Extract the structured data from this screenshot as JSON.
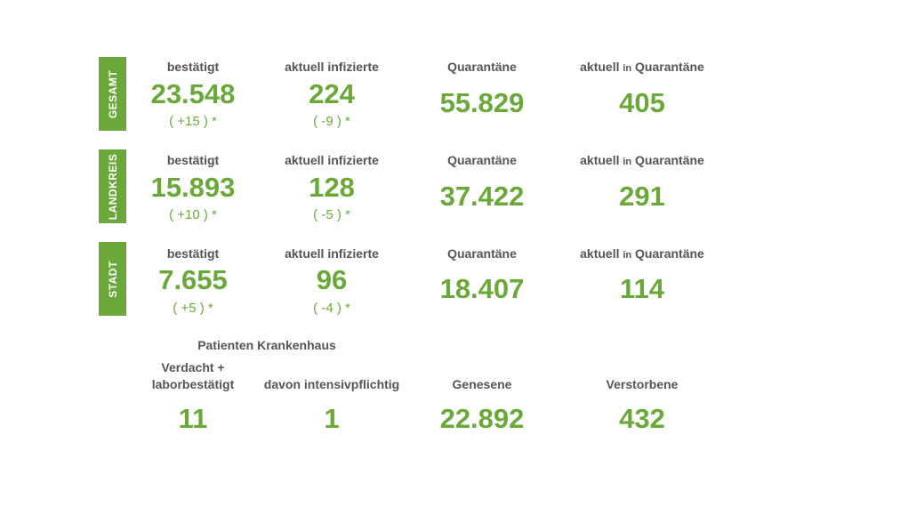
{
  "colors": {
    "accent": "#6aa83a",
    "label": "#555555",
    "background": "#ffffff"
  },
  "columns": {
    "confirmed": "bestätigt",
    "active": "aktuell infizierte",
    "quarantine": "Quarantäne",
    "current_quarantine_prefix": "aktuell",
    "current_quarantine_in": "in",
    "current_quarantine_suffix": "Quarantäne"
  },
  "sections": [
    {
      "tab": "GESAMT",
      "confirmed": "23.548",
      "confirmed_change": "( +15 ) *",
      "active": "224",
      "active_change": "( -9 ) *",
      "quarantine": "55.829",
      "current_quarantine": "405"
    },
    {
      "tab": "LANDKREIS",
      "confirmed": "15.893",
      "confirmed_change": "( +10 ) *",
      "active": "128",
      "active_change": "( -5 ) *",
      "quarantine": "37.422",
      "current_quarantine": "291"
    },
    {
      "tab": "STADT",
      "confirmed": "7.655",
      "confirmed_change": "( +5 ) *",
      "active": "96",
      "active_change": "( -4 ) *",
      "quarantine": "18.407",
      "current_quarantine": "114"
    }
  ],
  "hospital": {
    "title": "Patienten Krankenhaus",
    "suspected_label_line1": "Verdacht +",
    "suspected_label_line2": "laborbestätigt",
    "suspected_value": "11",
    "intensive_label": "davon intensivpflichtig",
    "intensive_value": "1",
    "recovered_label": "Genesene",
    "recovered_value": "22.892",
    "deceased_label": "Verstorbene",
    "deceased_value": "432"
  }
}
